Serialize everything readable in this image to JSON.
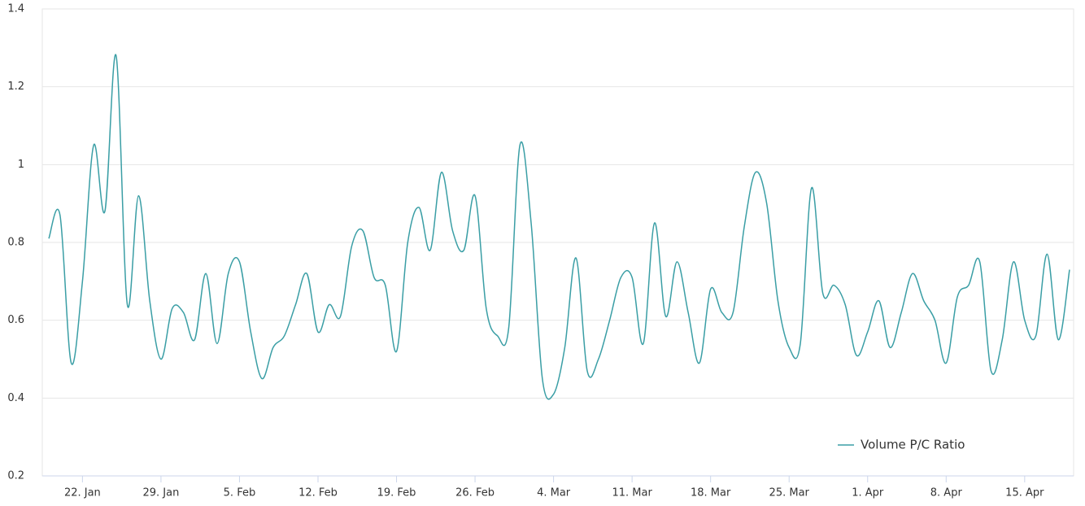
{
  "chart_data": {
    "type": "line",
    "categories": [
      null,
      null,
      null,
      "22. Jan",
      null,
      null,
      null,
      null,
      null,
      null,
      "29. Jan",
      null,
      null,
      null,
      null,
      null,
      null,
      "5. Feb",
      null,
      null,
      null,
      null,
      null,
      null,
      "12. Feb",
      null,
      null,
      null,
      null,
      null,
      null,
      "19. Feb",
      null,
      null,
      null,
      null,
      null,
      null,
      "26. Feb",
      null,
      null,
      null,
      null,
      null,
      null,
      "4. Mar",
      null,
      null,
      null,
      null,
      null,
      null,
      "11. Mar",
      null,
      null,
      null,
      null,
      null,
      null,
      "18. Mar",
      null,
      null,
      null,
      null,
      null,
      null,
      "25. Mar",
      null,
      null,
      null,
      null,
      null,
      null,
      "1. Apr",
      null,
      null,
      null,
      null,
      null,
      null,
      "8. Apr",
      null,
      null,
      null,
      null,
      null,
      null,
      "15. Apr",
      null,
      null,
      null,
      null
    ],
    "series": [
      {
        "name": "Volume P/C Ratio",
        "color": "#3a9ea5",
        "values": [
          0.81,
          0.87,
          0.49,
          0.7,
          1.05,
          0.88,
          1.28,
          0.64,
          0.92,
          0.65,
          0.5,
          0.63,
          0.62,
          0.55,
          0.72,
          0.54,
          0.72,
          0.75,
          0.57,
          0.45,
          0.53,
          0.56,
          0.64,
          0.72,
          0.57,
          0.64,
          0.61,
          0.79,
          0.83,
          0.71,
          0.69,
          0.52,
          0.8,
          0.89,
          0.78,
          0.98,
          0.83,
          0.78,
          0.92,
          0.63,
          0.56,
          0.58,
          1.05,
          0.85,
          0.45,
          0.41,
          0.53,
          0.76,
          0.47,
          0.5,
          0.6,
          0.71,
          0.71,
          0.54,
          0.85,
          0.61,
          0.75,
          0.62,
          0.49,
          0.68,
          0.62,
          0.62,
          0.84,
          0.98,
          0.9,
          0.65,
          0.53,
          0.54,
          0.94,
          0.67,
          0.69,
          0.64,
          0.51,
          0.57,
          0.65,
          0.53,
          0.62,
          0.72,
          0.65,
          0.6,
          0.49,
          0.66,
          0.69,
          0.75,
          0.47,
          0.55,
          0.75,
          0.6,
          0.56,
          0.77,
          0.55,
          0.73
        ]
      }
    ],
    "ylim": [
      0.2,
      1.4
    ],
    "yticks": [
      0.2,
      0.4,
      0.6,
      0.8,
      1,
      1.2,
      1.4
    ],
    "grid": true,
    "legend": "lower right"
  }
}
